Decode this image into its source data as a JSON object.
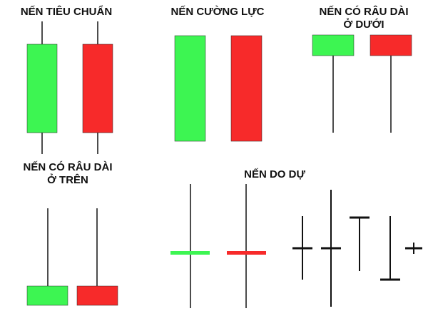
{
  "sections": {
    "standard": {
      "title": "NẾN TIÊU CHUẨN"
    },
    "strong": {
      "title": "NẾN CƯỜNG LỰC"
    },
    "lower_shadow": {
      "title_line1": "NẾN CÓ RÂU DÀI",
      "title_line2": "Ở DƯỚI"
    },
    "upper_shadow": {
      "title_line1": "NẾN CÓ RÂU DÀI",
      "title_line2": "Ở TRÊN"
    },
    "doji": {
      "title": "NẾN DO DỰ"
    }
  },
  "colors": {
    "bullish": "#3df552",
    "bearish": "#f72a2a",
    "wick": "#111111",
    "doji": "#111111"
  }
}
